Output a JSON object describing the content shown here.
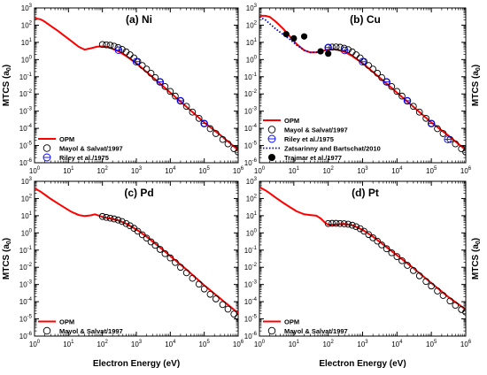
{
  "figure": {
    "xlabel": "Electron Energy (eV)",
    "ylabel": "MTCS (a",
    "ylabel_sub": "0",
    "ylabel_close": ")"
  },
  "chart_data": [
    {
      "type": "line",
      "title": "(a) Ni",
      "xscale": "log",
      "yscale": "log",
      "xlim": [
        1,
        1000000
      ],
      "ylim": [
        1e-06,
        1000
      ],
      "ylabel_side": "left",
      "show_xlabel": false,
      "legend_position": "bottom-left",
      "series": [
        {
          "name": "OPM",
          "style": "line",
          "color": "#ff0000",
          "x": [
            1,
            1.5,
            2,
            3,
            5,
            8,
            12,
            20,
            30,
            45,
            70,
            100,
            150,
            200,
            300,
            500,
            1000,
            2000,
            5000,
            10000,
            30000,
            100000,
            300000,
            1000000
          ],
          "y": [
            250,
            220,
            160,
            90,
            45,
            22,
            12,
            5.5,
            3.8,
            4.5,
            5.6,
            5.8,
            5.2,
            4.2,
            3.0,
            1.6,
            0.6,
            0.19,
            0.04,
            0.012,
            0.0018,
            0.00022,
            4e-05,
            5.5e-06
          ]
        },
        {
          "name": "Mayol & Salvat/1997",
          "style": "open-circle",
          "color": "#000000",
          "x": [
            100,
            130,
            170,
            220,
            290,
            380,
            500,
            650,
            850,
            1100,
            1500,
            2000,
            2700,
            3600,
            5000,
            7000,
            10000,
            14000,
            20000,
            30000,
            45000,
            70000,
            100000,
            150000,
            220000,
            350000,
            500000,
            750000,
            1000000
          ],
          "y": [
            7.5,
            7.2,
            6.8,
            6.0,
            5.0,
            3.9,
            2.8,
            1.9,
            1.25,
            0.78,
            0.45,
            0.28,
            0.16,
            0.09,
            0.05,
            0.027,
            0.014,
            0.0075,
            0.004,
            0.0019,
            0.00088,
            0.00038,
            0.00019,
            9.51e-05,
            4.99e-05,
            2.26e-05,
            1.25e-05,
            6.5e-06,
            4.2e-06
          ]
        },
        {
          "name": "Riley et al./1975",
          "style": "circle-bar",
          "color": "#0000ff",
          "x": [
            300,
            1000,
            5000,
            20000,
            100000
          ],
          "y": [
            3.5,
            0.75,
            0.05,
            0.004,
            0.00019
          ]
        }
      ]
    },
    {
      "type": "line",
      "title": "(b) Cu",
      "xscale": "log",
      "yscale": "log",
      "xlim": [
        1,
        1000000
      ],
      "ylim": [
        1e-06,
        1000
      ],
      "ylabel_side": "right",
      "show_xlabel": false,
      "legend_position": "bottom-left",
      "series": [
        {
          "name": "OPM",
          "style": "line",
          "color": "#ff0000",
          "x": [
            1,
            1.5,
            2,
            3,
            5,
            8,
            12,
            20,
            30,
            45,
            70,
            100,
            150,
            200,
            300,
            500,
            1000,
            2000,
            5000,
            10000,
            30000,
            100000,
            300000,
            1000000
          ],
          "y": [
            350,
            350,
            300,
            160,
            60,
            20,
            8,
            3.5,
            2.6,
            2.6,
            3.2,
            3.8,
            4.0,
            3.5,
            2.8,
            1.6,
            0.6,
            0.19,
            0.04,
            0.012,
            0.0018,
            0.00022,
            4e-05,
            5.5e-06
          ]
        },
        {
          "name": "Mayol & Salvat/1997",
          "style": "open-circle",
          "color": "#000000",
          "x": [
            100,
            130,
            170,
            220,
            290,
            380,
            500,
            650,
            850,
            1100,
            1500,
            2000,
            2700,
            3600,
            5000,
            7000,
            10000,
            14000,
            20000,
            30000,
            45000,
            70000,
            100000,
            150000,
            220000,
            350000,
            500000,
            750000,
            1000000
          ],
          "y": [
            5.0,
            5.3,
            5.4,
            5.2,
            4.6,
            3.8,
            2.8,
            1.9,
            1.25,
            0.78,
            0.45,
            0.28,
            0.16,
            0.09,
            0.05,
            0.027,
            0.014,
            0.0075,
            0.004,
            0.0019,
            0.00088,
            0.00038,
            0.00019,
            9.51e-05,
            4.99e-05,
            2.26e-05,
            1.25e-05,
            6.5e-06,
            4.2e-06
          ]
        },
        {
          "name": "Riley et al./1975",
          "style": "circle-bar",
          "color": "#0000ff",
          "x": [
            100,
            300,
            1000,
            5000,
            20000,
            100000,
            300000
          ],
          "y": [
            5.0,
            3.4,
            0.75,
            0.05,
            0.004,
            0.00019,
            2.27e-05
          ]
        },
        {
          "name": "Zatsarinny and Bartschat/2010",
          "style": "dotted",
          "color": "#0000cc",
          "x": [
            1,
            1.5,
            2,
            3,
            5,
            8,
            12,
            20,
            30,
            50,
            80
          ],
          "y": [
            300,
            200,
            120,
            60,
            28,
            14,
            7,
            3.5,
            2.6,
            2.7,
            3.0
          ]
        },
        {
          "name": "Trajmar et al./1977",
          "style": "filled-circle",
          "color": "#000000",
          "x": [
            6,
            10,
            20,
            60,
            100
          ],
          "y": [
            30,
            17,
            22,
            3.0,
            2.2
          ]
        }
      ]
    },
    {
      "type": "line",
      "title": "(c) Pd",
      "xscale": "log",
      "yscale": "log",
      "xlim": [
        1,
        1000000
      ],
      "ylim": [
        1e-06,
        1000
      ],
      "ylabel_side": "left",
      "show_xlabel": true,
      "legend_position": "bottom-left",
      "series": [
        {
          "name": "OPM",
          "style": "line",
          "color": "#ff0000",
          "x": [
            1,
            1.5,
            2,
            3,
            5,
            8,
            12,
            20,
            30,
            45,
            60,
            80,
            100,
            150,
            200,
            300,
            500,
            1000,
            2000,
            5000,
            10000,
            30000,
            100000,
            300000,
            1000000
          ],
          "y": [
            400,
            250,
            170,
            95,
            50,
            28,
            17,
            11,
            9.5,
            10.5,
            12,
            10,
            8.5,
            7.2,
            6.5,
            5.3,
            3.4,
            1.6,
            0.6,
            0.14,
            0.045,
            0.0075,
            0.0009,
            0.00015,
            2.15e-05
          ]
        },
        {
          "name": "Mayol & Salvat/1997",
          "style": "open-circle",
          "color": "#000000",
          "x": [
            100,
            130,
            170,
            220,
            290,
            380,
            500,
            650,
            850,
            1100,
            1500,
            2000,
            2700,
            3600,
            5000,
            7000,
            10000,
            14000,
            20000,
            30000,
            45000,
            70000,
            100000,
            150000,
            220000,
            350000,
            500000,
            750000,
            1000000
          ],
          "y": [
            9.0,
            8.0,
            7.2,
            6.5,
            5.6,
            4.6,
            3.5,
            2.6,
            1.85,
            1.25,
            0.78,
            0.5,
            0.3,
            0.19,
            0.11,
            0.062,
            0.035,
            0.019,
            0.01,
            0.0048,
            0.0023,
            0.00105,
            0.00055,
            0.00027,
            0.000145,
            6.8e-05,
            3.7e-05,
            1.9e-05,
            1.25e-05
          ]
        }
      ]
    },
    {
      "type": "line",
      "title": "(d) Pt",
      "xscale": "log",
      "yscale": "log",
      "xlim": [
        1,
        1000000
      ],
      "ylim": [
        1e-06,
        1000
      ],
      "ylabel_side": "right",
      "show_xlabel": true,
      "legend_position": "bottom-left",
      "series": [
        {
          "name": "OPM",
          "style": "line",
          "color": "#ff0000",
          "x": [
            1,
            1.5,
            2,
            3,
            5,
            8,
            12,
            20,
            30,
            45,
            60,
            80,
            100,
            150,
            200,
            300,
            500,
            1000,
            2000,
            5000,
            10000,
            30000,
            100000,
            300000,
            1000000
          ],
          "y": [
            450,
            300,
            200,
            110,
            55,
            30,
            18,
            12,
            11,
            10,
            7,
            4,
            3.0,
            3.0,
            3.2,
            3.3,
            2.8,
            1.5,
            0.6,
            0.15,
            0.05,
            0.009,
            0.0012,
            0.0002,
            3.5e-05
          ]
        },
        {
          "name": "Mayol & Salvat/1997",
          "style": "open-circle",
          "color": "#000000",
          "x": [
            100,
            130,
            170,
            220,
            290,
            380,
            500,
            650,
            850,
            1100,
            1500,
            2000,
            2700,
            3600,
            5000,
            7000,
            10000,
            14000,
            20000,
            30000,
            45000,
            70000,
            100000,
            150000,
            220000,
            350000,
            500000,
            750000,
            1000000
          ],
          "y": [
            3.5,
            3.6,
            3.6,
            3.5,
            3.4,
            3.2,
            2.8,
            2.3,
            1.75,
            1.25,
            0.8,
            0.52,
            0.33,
            0.2,
            0.12,
            0.07,
            0.042,
            0.024,
            0.013,
            0.0065,
            0.0032,
            0.0015,
            0.00082,
            0.00042,
            0.00023,
            0.00011,
            6.2e-05,
            3.5e-05,
            2.5e-05
          ]
        }
      ]
    }
  ]
}
